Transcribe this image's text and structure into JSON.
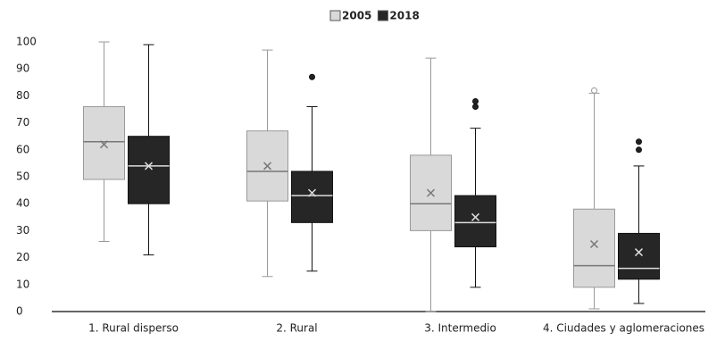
{
  "chart_data": {
    "type": "box",
    "categories": [
      "1. Rural disperso",
      "2. Rural",
      "3. Intermedio",
      "4. Ciudades y aglomeraciones"
    ],
    "ylim": [
      0,
      100
    ],
    "yticks": [
      0,
      10,
      20,
      30,
      40,
      50,
      60,
      70,
      80,
      90,
      100
    ],
    "grid": false,
    "legend": "top",
    "series": [
      {
        "name": "2005",
        "color": "#d9d9d9",
        "boxes": [
          {
            "min": 26,
            "q1": 49,
            "median": 63,
            "q3": 76,
            "max": 100,
            "mean": 62,
            "outliers": []
          },
          {
            "min": 13,
            "q1": 41,
            "median": 52,
            "q3": 67,
            "max": 97,
            "mean": 54,
            "outliers": []
          },
          {
            "min": 0,
            "q1": 30,
            "median": 40,
            "q3": 58,
            "max": 94,
            "mean": 44,
            "outliers": []
          },
          {
            "min": 1,
            "q1": 9,
            "median": 17,
            "q3": 38,
            "max": 81,
            "mean": 25,
            "outliers": [
              82
            ]
          }
        ]
      },
      {
        "name": "2018",
        "color": "#262626",
        "boxes": [
          {
            "min": 21,
            "q1": 40,
            "median": 54,
            "q3": 65,
            "max": 99,
            "mean": 54,
            "outliers": []
          },
          {
            "min": 15,
            "q1": 33,
            "median": 43,
            "q3": 52,
            "max": 76,
            "mean": 44,
            "outliers": [
              87
            ]
          },
          {
            "min": 9,
            "q1": 24,
            "median": 33,
            "q3": 43,
            "max": 68,
            "mean": 35,
            "outliers": [
              76,
              78
            ]
          },
          {
            "min": 3,
            "q1": 12,
            "median": 16,
            "q3": 29,
            "max": 54,
            "mean": 22,
            "outliers": [
              60,
              63
            ]
          }
        ]
      }
    ]
  }
}
